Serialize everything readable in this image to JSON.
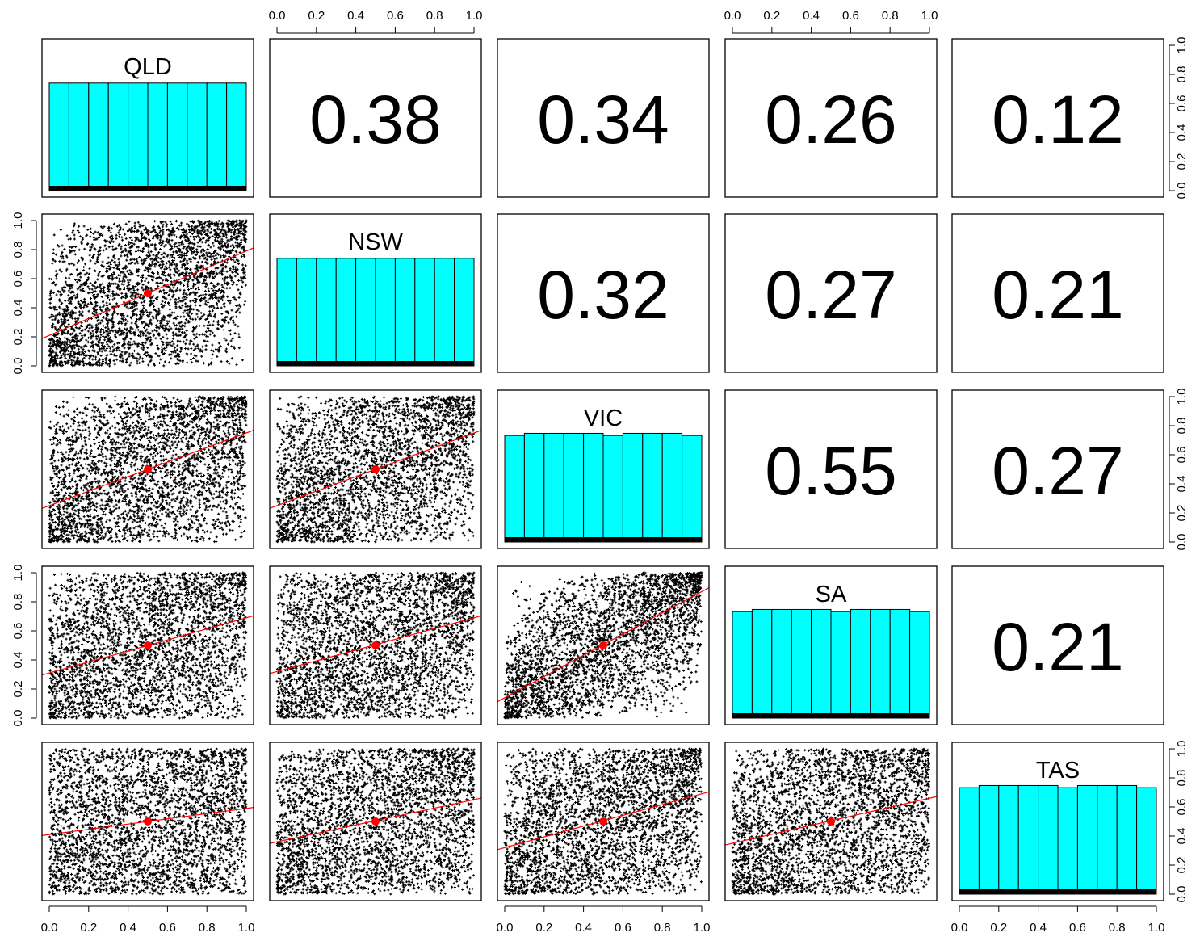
{
  "chart_data": {
    "type": "scatter",
    "variables": [
      "QLD",
      "NSW",
      "VIC",
      "SA",
      "TAS"
    ],
    "correlations": [
      {
        "row": 0,
        "col": 1,
        "value": "0.38"
      },
      {
        "row": 0,
        "col": 2,
        "value": "0.34"
      },
      {
        "row": 0,
        "col": 3,
        "value": "0.26"
      },
      {
        "row": 0,
        "col": 4,
        "value": "0.12"
      },
      {
        "row": 1,
        "col": 2,
        "value": "0.32"
      },
      {
        "row": 1,
        "col": 3,
        "value": "0.27"
      },
      {
        "row": 1,
        "col": 4,
        "value": "0.21"
      },
      {
        "row": 2,
        "col": 3,
        "value": "0.55"
      },
      {
        "row": 2,
        "col": 4,
        "value": "0.27"
      },
      {
        "row": 3,
        "col": 4,
        "value": "0.21"
      }
    ],
    "histograms": [
      {
        "variable": "QLD",
        "values": [
          0.1,
          0.1,
          0.1,
          0.1,
          0.1,
          0.1,
          0.1,
          0.1,
          0.1,
          0.1
        ]
      },
      {
        "variable": "NSW",
        "values": [
          0.1,
          0.1,
          0.1,
          0.1,
          0.1,
          0.1,
          0.1,
          0.1,
          0.1,
          0.1
        ]
      },
      {
        "variable": "VIC",
        "values": [
          0.099,
          0.101,
          0.101,
          0.101,
          0.101,
          0.099,
          0.101,
          0.101,
          0.101,
          0.099
        ]
      },
      {
        "variable": "SA",
        "values": [
          0.099,
          0.101,
          0.101,
          0.101,
          0.101,
          0.099,
          0.101,
          0.101,
          0.101,
          0.099
        ]
      },
      {
        "variable": "TAS",
        "values": [
          0.099,
          0.101,
          0.101,
          0.101,
          0.101,
          0.099,
          0.101,
          0.101,
          0.101,
          0.099
        ]
      }
    ],
    "regression_lines": [
      {
        "row": 1,
        "col": 0,
        "intercept": 0.21,
        "slope": 0.58
      },
      {
        "row": 2,
        "col": 0,
        "intercept": 0.25,
        "slope": 0.5
      },
      {
        "row": 2,
        "col": 1,
        "intercept": 0.25,
        "slope": 0.5
      },
      {
        "row": 3,
        "col": 0,
        "intercept": 0.31,
        "slope": 0.38
      },
      {
        "row": 3,
        "col": 1,
        "intercept": 0.32,
        "slope": 0.37
      },
      {
        "row": 3,
        "col": 2,
        "intercept": 0.14,
        "slope": 0.73
      },
      {
        "row": 4,
        "col": 0,
        "intercept": 0.41,
        "slope": 0.18
      },
      {
        "row": 4,
        "col": 1,
        "intercept": 0.36,
        "slope": 0.29
      },
      {
        "row": 4,
        "col": 2,
        "intercept": 0.32,
        "slope": 0.37
      },
      {
        "row": 4,
        "col": 3,
        "intercept": 0.35,
        "slope": 0.31
      }
    ],
    "means": [
      0.5,
      0.5,
      0.5,
      0.5,
      0.5
    ],
    "axis_ticks": [
      "0.0",
      "0.2",
      "0.4",
      "0.6",
      "0.8",
      "1.0"
    ],
    "xlim": [
      0,
      1
    ],
    "ylim": [
      0,
      1
    ],
    "colors": {
      "histogram_fill": "#00ffff",
      "regression_line": "#ff0000",
      "mean_point": "#ff0000",
      "points": "#000000"
    }
  }
}
